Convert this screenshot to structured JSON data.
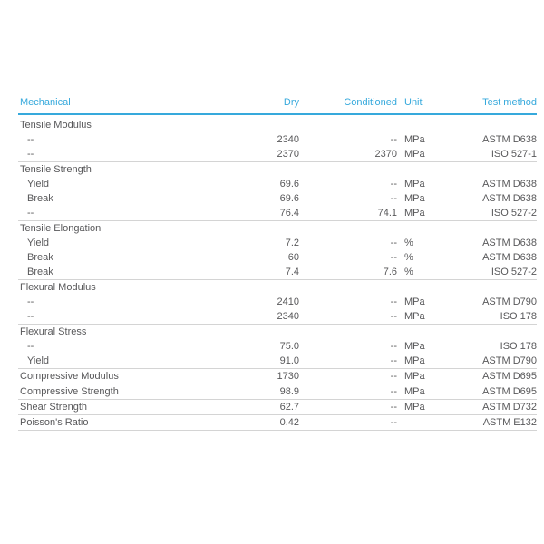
{
  "colors": {
    "accent_cyan": "#36a9dc",
    "body_text": "#58585a",
    "rule_gray": "#d4d4d4",
    "page_background": "#ffffff"
  },
  "table": {
    "headers": {
      "property": "Mechanical",
      "dry": "Dry",
      "conditioned": "Conditioned",
      "unit": "Unit",
      "test_method": "Test method"
    },
    "groups": [
      {
        "label": "Tensile Modulus",
        "label_values": null,
        "rows": [
          {
            "property": "--",
            "dry": "2340",
            "conditioned": "--",
            "unit": "MPa",
            "test_method": "ASTM D638"
          },
          {
            "property": "--",
            "dry": "2370",
            "conditioned": "2370",
            "unit": "MPa",
            "test_method": "ISO 527-1"
          }
        ]
      },
      {
        "label": "Tensile Strength",
        "label_values": null,
        "rows": [
          {
            "property": "Yield",
            "dry": "69.6",
            "conditioned": "--",
            "unit": "MPa",
            "test_method": "ASTM D638"
          },
          {
            "property": "Break",
            "dry": "69.6",
            "conditioned": "--",
            "unit": "MPa",
            "test_method": "ASTM D638"
          },
          {
            "property": "--",
            "dry": "76.4",
            "conditioned": "74.1",
            "unit": "MPa",
            "test_method": "ISO 527-2"
          }
        ]
      },
      {
        "label": "Tensile Elongation",
        "label_values": null,
        "rows": [
          {
            "property": "Yield",
            "dry": "7.2",
            "conditioned": "--",
            "unit": "%",
            "test_method": "ASTM D638"
          },
          {
            "property": "Break",
            "dry": "60",
            "conditioned": "--",
            "unit": "%",
            "test_method": "ASTM D638"
          },
          {
            "property": "Break",
            "dry": "7.4",
            "conditioned": "7.6",
            "unit": "%",
            "test_method": "ISO 527-2"
          }
        ]
      },
      {
        "label": "Flexural Modulus",
        "label_values": null,
        "rows": [
          {
            "property": "--",
            "dry": "2410",
            "conditioned": "--",
            "unit": "MPa",
            "test_method": "ASTM D790"
          },
          {
            "property": "--",
            "dry": "2340",
            "conditioned": "--",
            "unit": "MPa",
            "test_method": "ISO 178"
          }
        ]
      },
      {
        "label": "Flexural Stress",
        "label_values": null,
        "rows": [
          {
            "property": "--",
            "dry": "75.0",
            "conditioned": "--",
            "unit": "MPa",
            "test_method": "ISO 178"
          },
          {
            "property": "Yield",
            "dry": "91.0",
            "conditioned": "--",
            "unit": "MPa",
            "test_method": "ASTM D790"
          }
        ]
      },
      {
        "label": "Compressive Modulus",
        "label_values": {
          "dry": "1730",
          "conditioned": "--",
          "unit": "MPa",
          "test_method": "ASTM D695"
        },
        "rows": []
      },
      {
        "label": "Compressive Strength",
        "label_values": {
          "dry": "98.9",
          "conditioned": "--",
          "unit": "MPa",
          "test_method": "ASTM D695"
        },
        "rows": []
      },
      {
        "label": "Shear Strength",
        "label_values": {
          "dry": "62.7",
          "conditioned": "--",
          "unit": "MPa",
          "test_method": "ASTM D732"
        },
        "rows": []
      },
      {
        "label": "Poisson's Ratio",
        "label_values": {
          "dry": "0.42",
          "conditioned": "--",
          "unit": "",
          "test_method": "ASTM E132"
        },
        "rows": []
      }
    ]
  }
}
